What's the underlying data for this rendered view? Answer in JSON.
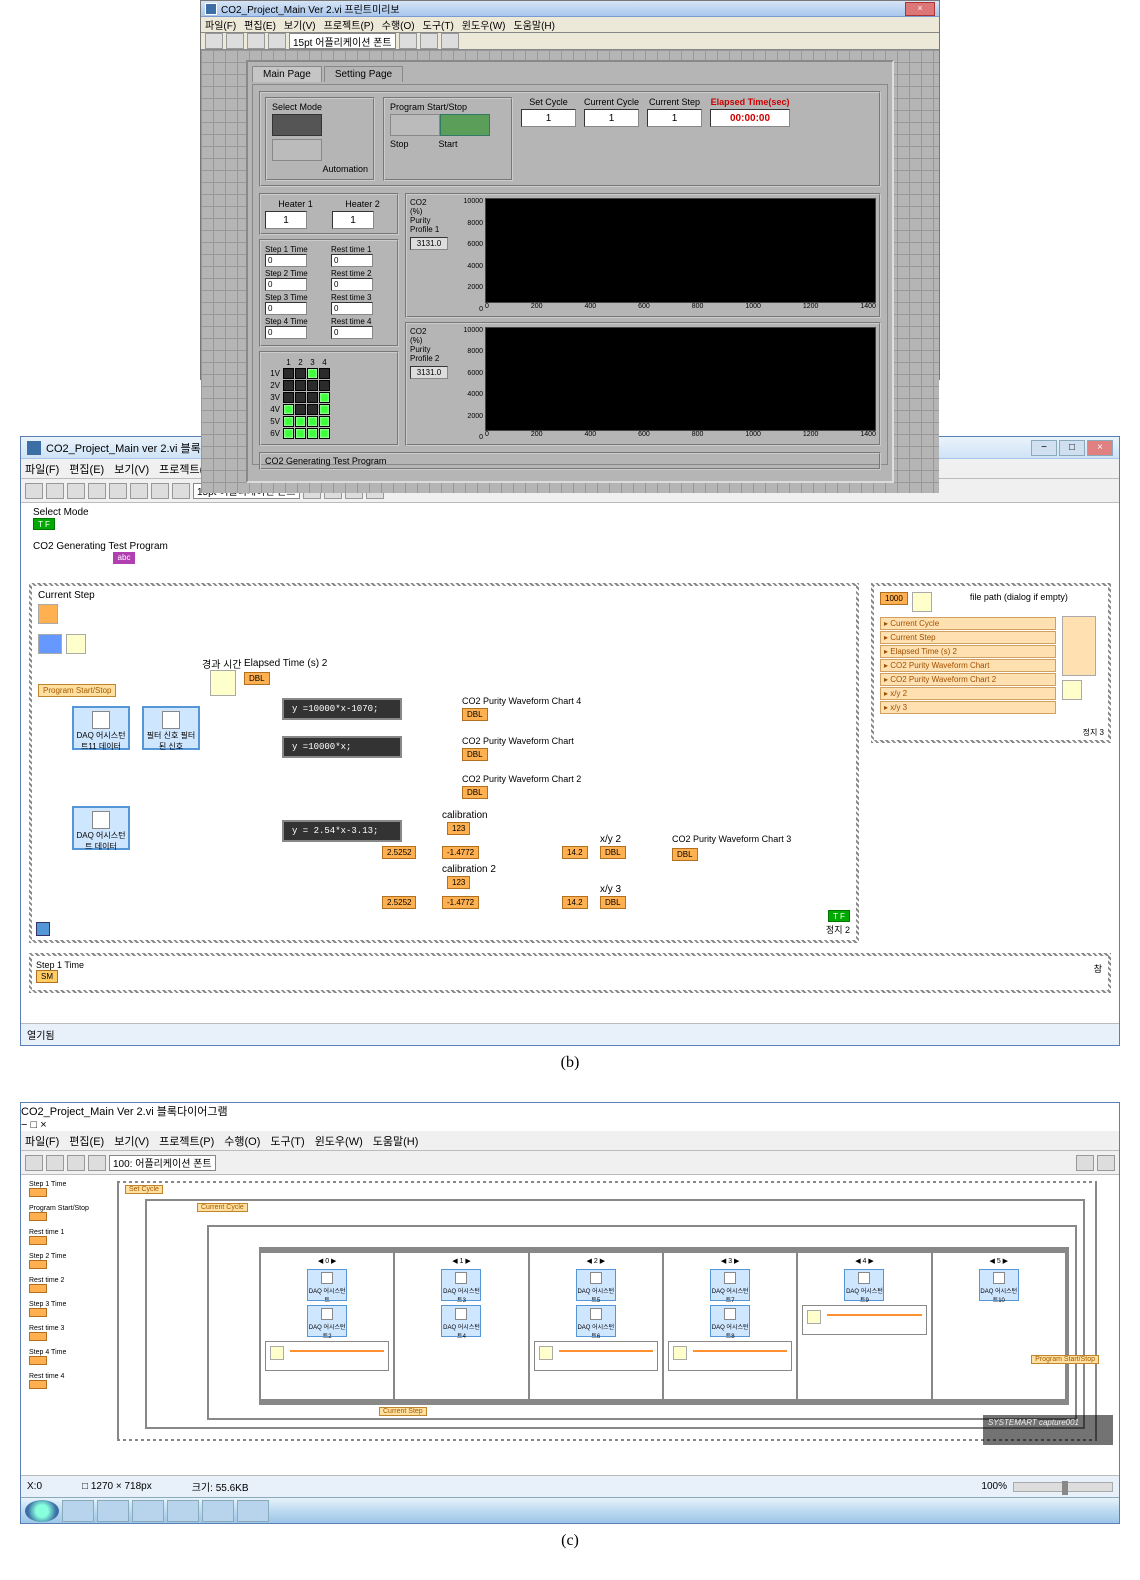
{
  "panelA": {
    "window_title": "CO2_Project_Main Ver 2.vi 프린트미리보",
    "menu": [
      "파일(F)",
      "편집(E)",
      "보기(V)",
      "프로젝트(P)",
      "수행(O)",
      "도구(T)",
      "윈도우(W)",
      "도움말(H)"
    ],
    "toolbar_font_dropdown": "15pt 어플리케이션 폰트",
    "tabs": [
      "Main Page",
      "Setting Page"
    ],
    "active_tab": 0,
    "select_mode": {
      "title": "Select Mode",
      "option": "Automation"
    },
    "program_startstop": {
      "title": "Program Start/Stop",
      "stop": "Stop",
      "start": "Start"
    },
    "set_cycle": {
      "label": "Set Cycle",
      "value": "1"
    },
    "current_cycle": {
      "label": "Current Cycle",
      "value": "1"
    },
    "current_step": {
      "label": "Current Step",
      "value": "1"
    },
    "elapsed": {
      "label": "Elapsed Time(sec)",
      "value": "00:00:00"
    },
    "heaters": {
      "h1": {
        "label": "Heater 1",
        "value": "1"
      },
      "h2": {
        "label": "Heater 2",
        "value": "1"
      }
    },
    "steps": {
      "left_labels": [
        "Step 1 Time",
        "Step 2 Time",
        "Step 3 Time",
        "Step 4 Time"
      ],
      "right_labels": [
        "Rest time 1",
        "Rest time 2",
        "Rest time 3",
        "Rest time 4"
      ],
      "left_vals": [
        "0",
        "0",
        "0",
        "0"
      ],
      "right_vals": [
        "0",
        "0",
        "0",
        "0"
      ]
    },
    "led": {
      "col_headers": [
        "1",
        "2",
        "3",
        "4"
      ],
      "row_headers": [
        "1V",
        "2V",
        "3V",
        "4V",
        "5V",
        "6V"
      ],
      "on_cells": [
        [
          1,
          3
        ],
        [
          3,
          4
        ],
        [
          4,
          1
        ],
        [
          4,
          4
        ],
        [
          5,
          1
        ],
        [
          5,
          2
        ],
        [
          5,
          3
        ],
        [
          5,
          4
        ],
        [
          6,
          1
        ],
        [
          6,
          2
        ],
        [
          6,
          3
        ],
        [
          6,
          4
        ]
      ]
    },
    "chart1": {
      "title_lines": [
        "CO2",
        "(%)",
        "Purity",
        "Profile 1"
      ],
      "value": "3131.0",
      "ylim": [
        0,
        10000
      ],
      "ytick_step": 2000,
      "xlim": [
        0,
        1400
      ],
      "xtick_step": 200,
      "plot_bg": "#000000"
    },
    "chart2": {
      "title_lines": [
        "CO2",
        "(%)",
        "Purity",
        "Profile 2"
      ],
      "value": "3131.0",
      "ylim": [
        0,
        10000
      ],
      "ytick_step": 2000,
      "xlim": [
        0,
        1400
      ],
      "xtick_step": 200,
      "plot_bg": "#000000"
    },
    "footer": "CO2 Generating Test Program"
  },
  "panelB": {
    "window_title": "CO2_Project_Main ver 2.vi 블록다이어그램 *",
    "menu": [
      "파일(F)",
      "편집(E)",
      "보기(V)",
      "프로젝트(P)",
      "수행(O)",
      "도구(T)",
      "윈도우(W)",
      "도움말(H)"
    ],
    "toolbar_font_dropdown": "15pt 어플리케이션 폰트",
    "labels": {
      "select_mode": "Select Mode",
      "program_name": "CO2 Generating Test Program",
      "current_step_lbl": "Current Step",
      "program_ss": "Program Start/Stop",
      "elapsed": "Elapsed Time (s) 2",
      "timer": "경과 시간"
    },
    "daq_nodes": [
      "DAQ\n어시스턴트11\n데이터",
      "필터\n신호\n필터된 신호",
      "DAQ\n어시스턴트\n데이터"
    ],
    "formulas": [
      "y =10000*x-1070;",
      "y =10000*x;",
      "y = 2.54*x-3.13;"
    ],
    "chart_labels": [
      "CO2 Purity Waveform Chart 4",
      "CO2 Purity Waveform Chart",
      "CO2 Purity Waveform Chart 2",
      "CO2 Purity Waveform Chart 3"
    ],
    "calibration_labels": [
      "calibration",
      "calibration 2"
    ],
    "const_values": [
      "2.5252",
      "-1.4772",
      "14.2",
      "2.5252",
      "-1.4772",
      "14.2"
    ],
    "xy_labels": [
      "x/y 2",
      "x/y 3"
    ],
    "sideloop": {
      "title": "file path (dialog if empty)",
      "items": [
        "Current Cycle",
        "Current Step",
        "Elapsed Time (s) 2",
        "CO2 Purity Waveform Chart",
        "CO2 Purity Waveform Chart 2",
        "x/y 2",
        "x/y 3"
      ],
      "const": "1000",
      "stop_label": "정지 3"
    },
    "bottom_label": "Step 1 Time",
    "bottom_ind": "SM",
    "main_stop": "정지 2",
    "status_left": "열기됨",
    "scroll_label": "참"
  },
  "panelC": {
    "window_title": "CO2_Project_Main Ver 2.vi 블록다이어그램",
    "menu": [
      "파일(F)",
      "편집(E)",
      "보기(V)",
      "프로젝트(P)",
      "수행(O)",
      "도구(T)",
      "윈도우(W)",
      "도움말(H)"
    ],
    "left_labels": [
      "Step 1 Time",
      "Program Start/Stop",
      "Rest time 1",
      "Step 2 Time",
      "Rest time 2",
      "Step 3 Time",
      "Rest time 3",
      "Step 4 Time",
      "Rest time 4"
    ],
    "set_cycle": "Set Cycle",
    "current_cycle": "Current Cycle",
    "daq_labels": [
      "DAQ 어시스턴트",
      "DAQ 어시스턴트2",
      "DAQ 어시스턴트3",
      "DAQ 어시스턴트4",
      "DAQ 어시스턴트5",
      "DAQ 어시스턴트6",
      "DAQ 어시스턴트7",
      "DAQ 어시스턴트8",
      "DAQ 어시스턴트9",
      "DAQ 어시스턴트10"
    ],
    "heater_labels": [
      "Heater 1",
      "Heater 2"
    ],
    "current_step_lbl": "Current Step",
    "program_ss_out": "Program Start/Stop",
    "watermark": "SYSTEMART\ncapture001",
    "statusbar": {
      "coords": "X:0",
      "size": "□ 1270 × 718px",
      "filesize": "크기: 55.6KB",
      "zoom": "100%"
    }
  },
  "colors": {
    "panel_gray": "#b5b5b5",
    "groove": "#cccccc",
    "led_on": "#3dff3d",
    "led_off": "#2a2a2a",
    "daq_blue": "#cfe6ff",
    "wire_orange": "#ff9030",
    "terminal_orange": "#ffb050",
    "label_green": "#00aa00",
    "label_pink": "#b040b0",
    "red_text": "#cc0000"
  }
}
